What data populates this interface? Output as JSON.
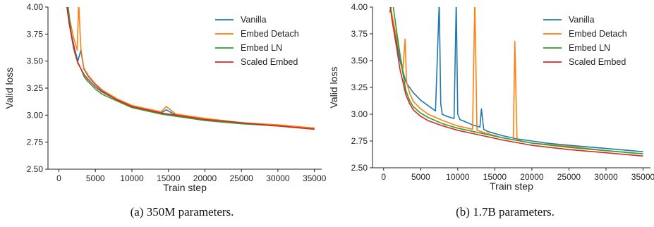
{
  "legend_colors": {
    "Vanilla": "#1f77b4",
    "Embed Detach": "#ff7f0e",
    "Embed LN": "#2ca02c",
    "Scaled Embed": "#d62728"
  },
  "chart_data": [
    {
      "type": "line",
      "caption": "(a) 350M parameters.",
      "xlabel": "Train step",
      "ylabel": "Valid loss",
      "xlim": [
        -1500,
        36000
      ],
      "ylim": [
        2.5,
        4.0
      ],
      "x_ticks": [
        0,
        5000,
        10000,
        15000,
        20000,
        25000,
        30000,
        35000
      ],
      "y_ticks": [
        2.5,
        2.75,
        3.0,
        3.25,
        3.5,
        3.75,
        4.0
      ],
      "legend_position": "top-right",
      "grid": false,
      "series": [
        {
          "name": "Vanilla",
          "x": [
            1000,
            1400,
            1800,
            2200,
            2600,
            3000,
            3400,
            4000,
            5000,
            6000,
            8000,
            10000,
            12000,
            14000,
            14700,
            16000,
            20000,
            25000,
            30000,
            35000
          ],
          "y": [
            4.05,
            3.85,
            3.72,
            3.6,
            3.5,
            3.6,
            3.43,
            3.36,
            3.28,
            3.22,
            3.14,
            3.08,
            3.05,
            3.02,
            3.05,
            3.0,
            2.96,
            2.93,
            2.9,
            2.88
          ]
        },
        {
          "name": "Embed Detach",
          "x": [
            1000,
            1500,
            2000,
            2500,
            2700,
            3000,
            3400,
            4000,
            5000,
            6000,
            8000,
            10000,
            12000,
            14000,
            14700,
            16000,
            20000,
            25000,
            30000,
            35000
          ],
          "y": [
            4.05,
            3.88,
            3.72,
            3.6,
            4.05,
            3.62,
            3.44,
            3.37,
            3.29,
            3.23,
            3.15,
            3.09,
            3.06,
            3.03,
            3.08,
            3.01,
            2.97,
            2.93,
            2.91,
            2.88
          ]
        },
        {
          "name": "Embed LN",
          "x": [
            1200,
            1600,
            2000,
            2600,
            3000,
            3500,
            4000,
            5000,
            6000,
            8000,
            10000,
            12000,
            14000,
            16000,
            20000,
            25000,
            30000,
            35000
          ],
          "y": [
            4.05,
            3.8,
            3.62,
            3.49,
            3.43,
            3.35,
            3.31,
            3.24,
            3.19,
            3.13,
            3.07,
            3.04,
            3.01,
            2.99,
            2.95,
            2.92,
            2.9,
            2.87
          ]
        },
        {
          "name": "Scaled Embed",
          "x": [
            1000,
            1400,
            1800,
            2200,
            2600,
            3000,
            3500,
            4000,
            5000,
            6000,
            8000,
            10000,
            12000,
            14000,
            16000,
            20000,
            25000,
            30000,
            35000
          ],
          "y": [
            4.05,
            3.85,
            3.7,
            3.57,
            3.48,
            3.43,
            3.37,
            3.33,
            3.26,
            3.21,
            3.14,
            3.08,
            3.05,
            3.02,
            3.0,
            2.96,
            2.93,
            2.9,
            2.87
          ]
        }
      ]
    },
    {
      "type": "line",
      "caption": "(b) 1.7B parameters.",
      "xlabel": "Train step",
      "ylabel": "Valid loss",
      "xlim": [
        -1500,
        36000
      ],
      "ylim": [
        2.5,
        4.0
      ],
      "x_ticks": [
        0,
        5000,
        10000,
        15000,
        20000,
        25000,
        30000,
        35000
      ],
      "y_ticks": [
        2.5,
        2.75,
        3.0,
        3.25,
        3.5,
        3.75,
        4.0
      ],
      "legend_position": "top-right",
      "grid": false,
      "series": [
        {
          "name": "Vanilla",
          "x": [
            800,
            1200,
            1800,
            2200,
            2600,
            3000,
            4000,
            5000,
            6000,
            7000,
            7500,
            7700,
            7900,
            8500,
            9500,
            9800,
            10000,
            10300,
            11000,
            12000,
            13000,
            13200,
            13500,
            14000,
            15000,
            16000,
            18000,
            20000,
            22000,
            25000,
            30000,
            35000
          ],
          "y": [
            4.05,
            3.85,
            3.65,
            3.5,
            3.4,
            3.3,
            3.2,
            3.13,
            3.08,
            3.03,
            4.05,
            3.1,
            3.0,
            2.98,
            2.96,
            4.05,
            3.0,
            2.95,
            2.93,
            2.9,
            2.88,
            3.05,
            2.86,
            2.84,
            2.82,
            2.8,
            2.77,
            2.75,
            2.73,
            2.71,
            2.68,
            2.65
          ]
        },
        {
          "name": "Embed Detach",
          "x": [
            800,
            1200,
            1800,
            2200,
            2600,
            2900,
            3100,
            3500,
            4000,
            5000,
            6000,
            8000,
            10000,
            12000,
            12300,
            12600,
            13000,
            14000,
            16000,
            17500,
            17700,
            18000,
            20000,
            25000,
            30000,
            35000
          ],
          "y": [
            4.05,
            3.9,
            3.7,
            3.55,
            3.42,
            3.7,
            3.3,
            3.2,
            3.12,
            3.05,
            3.0,
            2.94,
            2.89,
            2.86,
            4.05,
            2.85,
            2.84,
            2.82,
            2.78,
            2.76,
            3.68,
            2.76,
            2.73,
            2.7,
            2.66,
            2.63
          ]
        },
        {
          "name": "Embed LN",
          "x": [
            800,
            1200,
            1800,
            2300,
            2600,
            3000,
            3500,
            4000,
            5000,
            6000,
            8000,
            10000,
            12000,
            14000,
            16000,
            20000,
            25000,
            30000,
            35000
          ],
          "y": [
            3.95,
            4.05,
            3.75,
            3.52,
            3.38,
            3.22,
            3.13,
            3.07,
            3.01,
            2.97,
            2.91,
            2.87,
            2.84,
            2.81,
            2.78,
            2.73,
            2.69,
            2.66,
            2.63
          ]
        },
        {
          "name": "Scaled Embed",
          "x": [
            800,
            1200,
            1800,
            2200,
            2600,
            3000,
            3500,
            4000,
            5000,
            6000,
            8000,
            10000,
            12000,
            14000,
            16000,
            20000,
            25000,
            30000,
            35000
          ],
          "y": [
            4.05,
            3.85,
            3.6,
            3.42,
            3.3,
            3.18,
            3.1,
            3.04,
            2.98,
            2.94,
            2.89,
            2.85,
            2.82,
            2.79,
            2.76,
            2.71,
            2.67,
            2.64,
            2.61
          ]
        }
      ]
    }
  ]
}
